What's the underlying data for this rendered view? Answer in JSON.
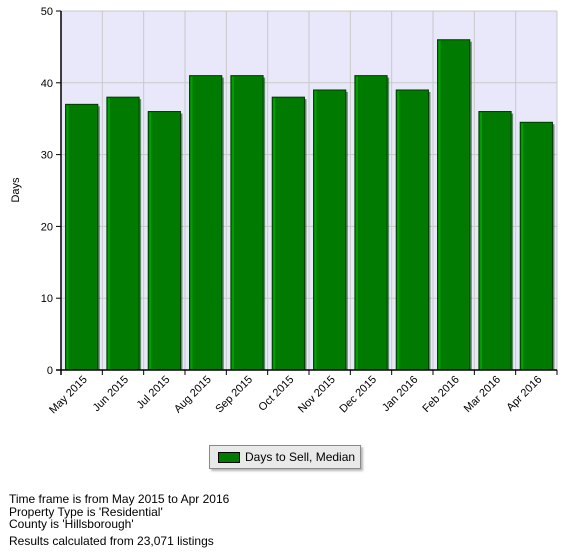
{
  "chart_data": {
    "type": "bar",
    "categories": [
      "May 2015",
      "Jun 2015",
      "Jul 2015",
      "Aug 2015",
      "Sep 2015",
      "Oct 2015",
      "Nov 2015",
      "Dec 2015",
      "Jan 2016",
      "Feb 2016",
      "Mar 2016",
      "Apr 2016"
    ],
    "series": [
      {
        "name": "Days to Sell, Median",
        "values": [
          37,
          38,
          36,
          41,
          41,
          38,
          39,
          41,
          39,
          46,
          36,
          34.5
        ]
      }
    ],
    "ylabel": "Days",
    "ylim": [
      0,
      50
    ],
    "yticks": [
      0,
      10,
      20,
      30,
      40,
      50
    ],
    "grid": true,
    "legend_position": "bottom-center",
    "colors": {
      "bar": "#007a00",
      "bar_highlight": "#00a000",
      "bar_shadow": "#004a00",
      "plot_background": "#e8e8fa",
      "gridline": "#c9c9c9"
    }
  },
  "legend": {
    "label": "Days to Sell, Median"
  },
  "footer": {
    "line1": "Time frame is from May 2015 to Apr 2016",
    "line2": "Property Type is 'Residential'",
    "line3": "County is 'Hillsborough'",
    "line4": "Results calculated from 23,071 listings"
  }
}
